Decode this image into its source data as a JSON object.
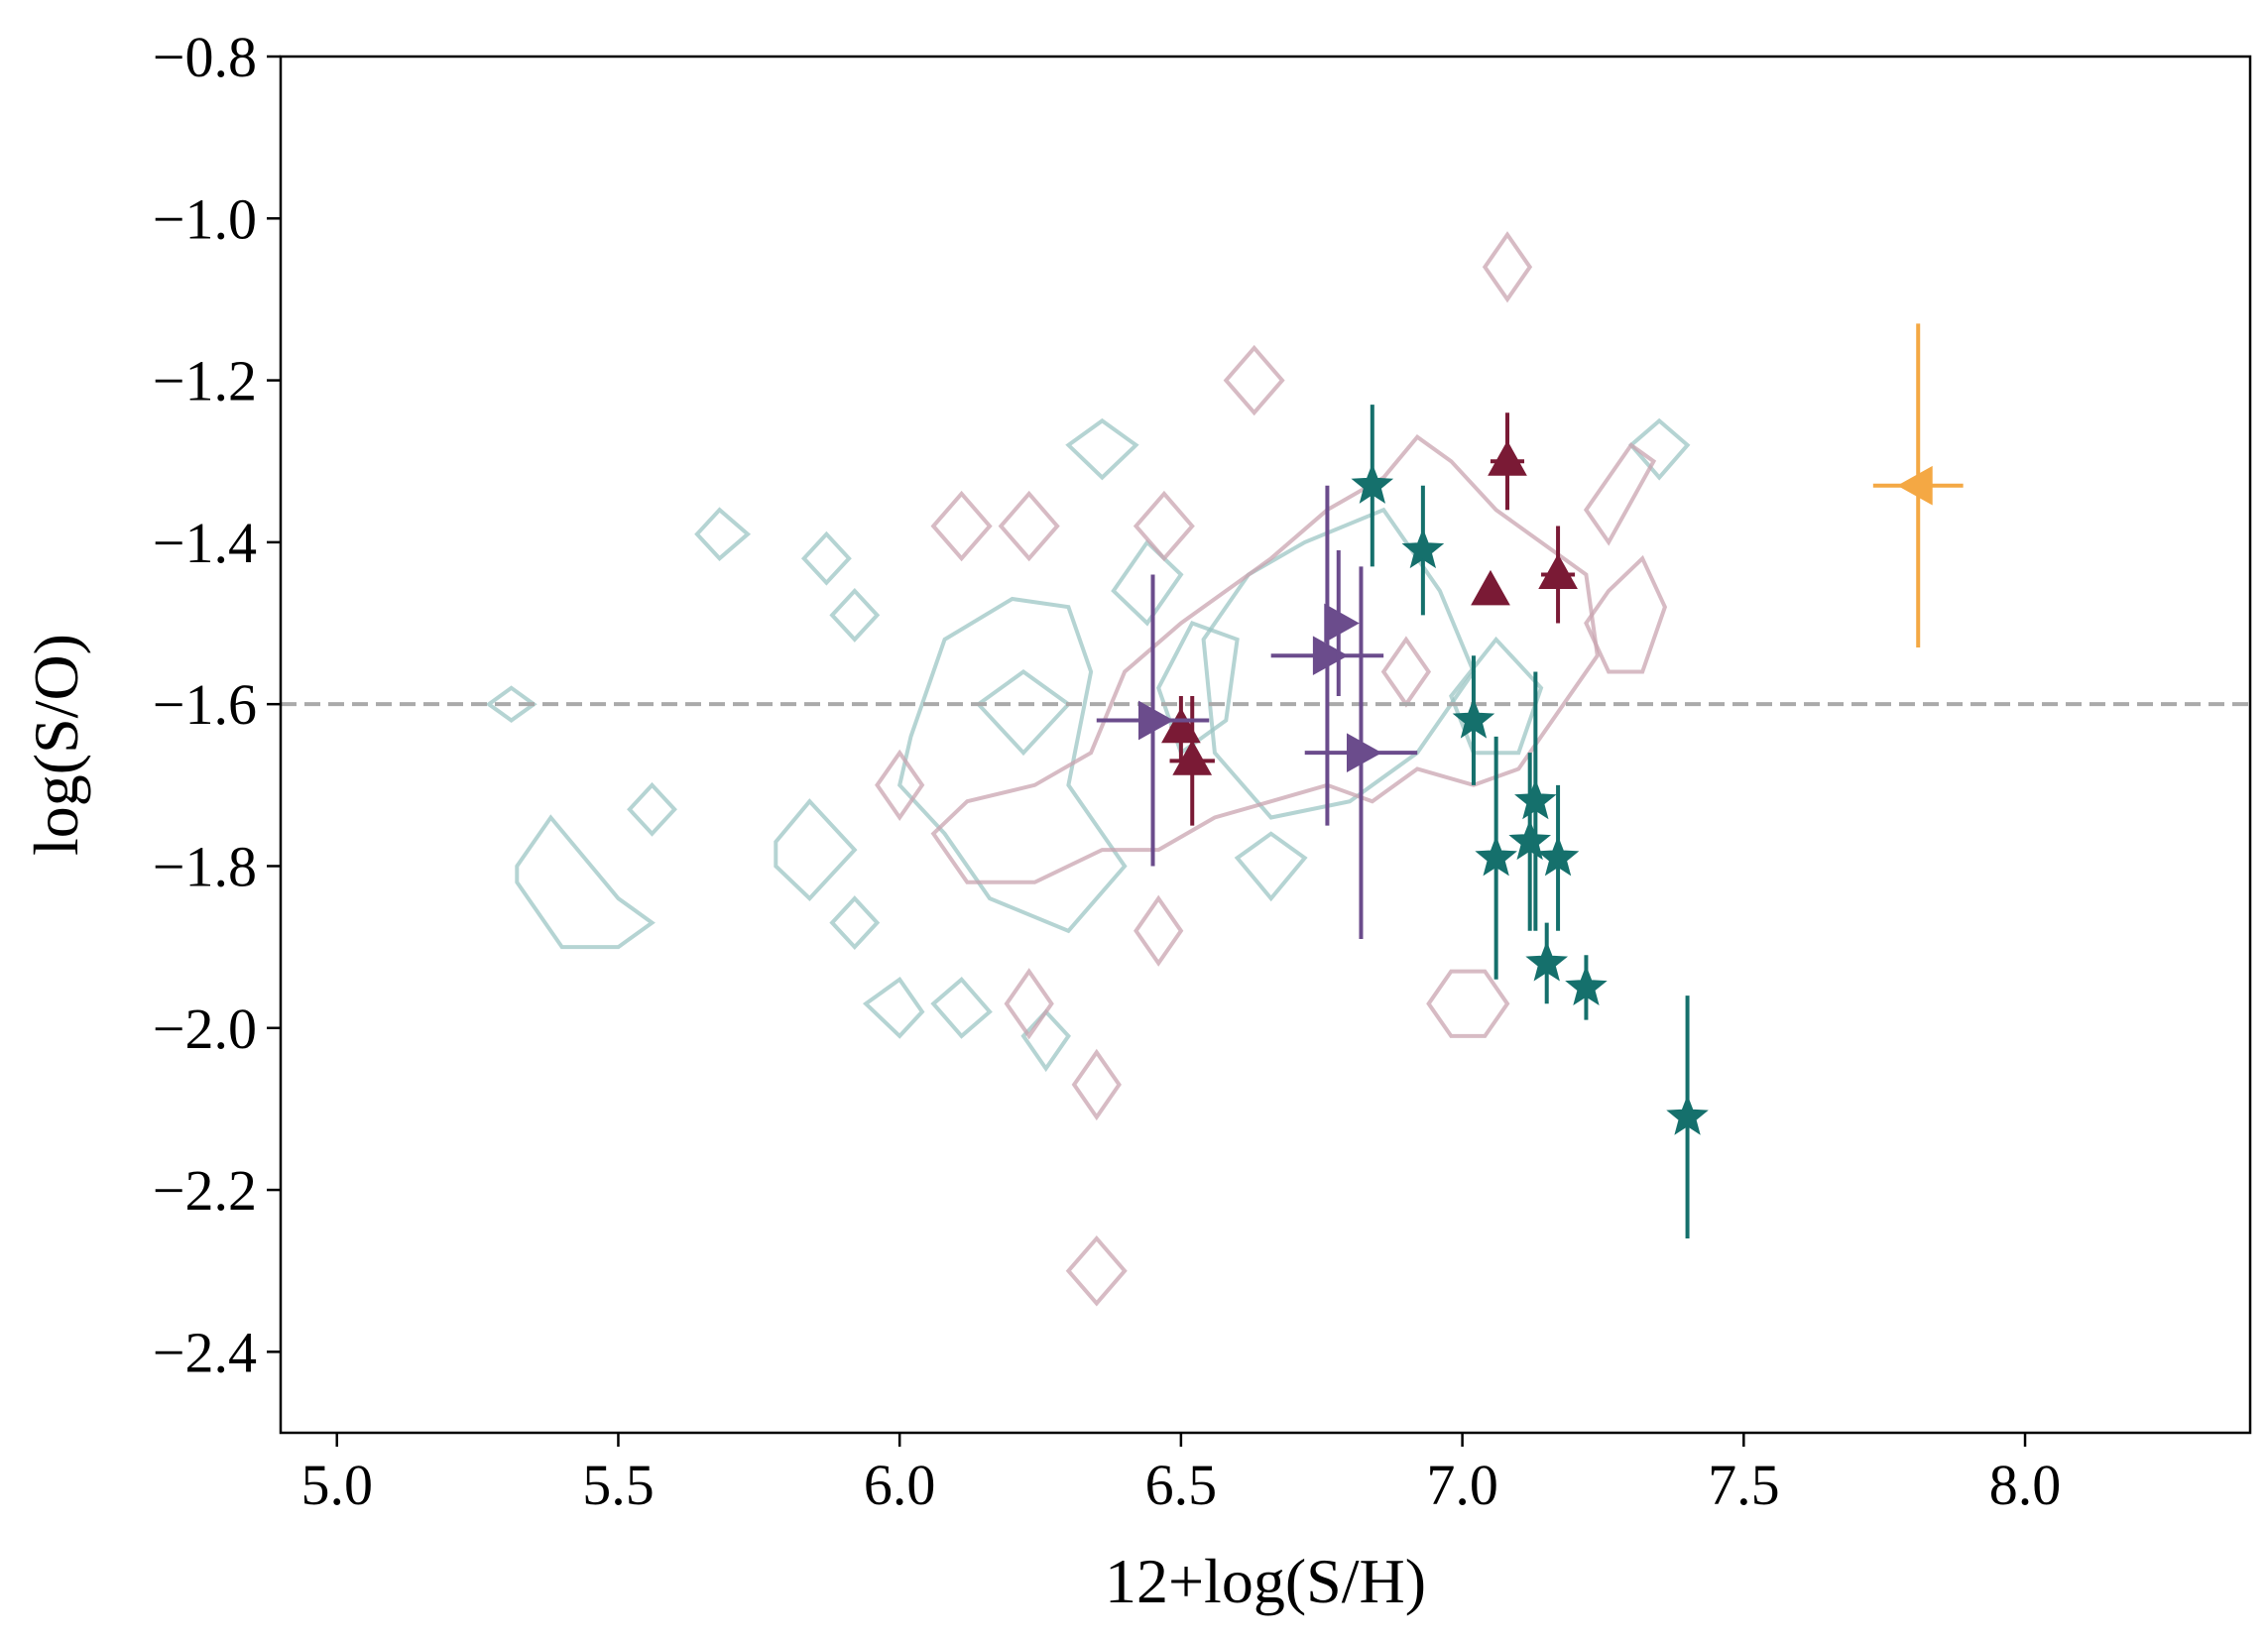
{
  "chart_data": {
    "type": "scatter",
    "title": "",
    "xlabel": "12+log(S/H)",
    "ylabel": "log(S/O)",
    "xlim": [
      4.9,
      8.4
    ],
    "ylim": [
      -2.5,
      -0.8
    ],
    "x_ticks": [
      5.0,
      5.5,
      6.0,
      6.5,
      7.0,
      7.5,
      8.0
    ],
    "x_tick_labels": [
      "5.0",
      "5.5",
      "6.0",
      "6.5",
      "7.0",
      "7.5",
      "8.0"
    ],
    "y_ticks": [
      -0.8,
      -1.0,
      -1.2,
      -1.4,
      -1.6,
      -1.8,
      -2.0,
      -2.2,
      -2.4
    ],
    "y_tick_labels": [
      "−0.8",
      "−1.0",
      "−1.2",
      "−1.4",
      "−1.6",
      "−1.8",
      "−2.0",
      "−2.2",
      "−2.4"
    ],
    "grid": false,
    "reference_line": {
      "y": -1.6,
      "style": "dashed",
      "color": "#aaaaaa"
    },
    "series": [
      {
        "name": "stars",
        "marker": "star",
        "color": "#15706c",
        "points": [
          {
            "x": 6.84,
            "y": -1.33,
            "yerr": [
              0.1,
              0.1
            ],
            "xerr": [
              0,
              0
            ]
          },
          {
            "x": 6.93,
            "y": -1.41,
            "yerr": [
              0.08,
              0.08
            ],
            "xerr": [
              0,
              0
            ]
          },
          {
            "x": 7.02,
            "y": -1.62,
            "yerr": [
              0.08,
              0.08
            ],
            "xerr": [
              0,
              0
            ]
          },
          {
            "x": 7.06,
            "y": -1.79,
            "yerr": [
              0.15,
              0.15
            ],
            "xerr": [
              0,
              0
            ]
          },
          {
            "x": 7.12,
            "y": -1.77,
            "yerr": [
              0.11,
              0.11
            ],
            "xerr": [
              0,
              0
            ]
          },
          {
            "x": 7.13,
            "y": -1.72,
            "yerr": [
              0.16,
              0.16
            ],
            "xerr": [
              0,
              0
            ]
          },
          {
            "x": 7.17,
            "y": -1.79,
            "yerr": [
              0.09,
              0.09
            ],
            "xerr": [
              0,
              0
            ]
          },
          {
            "x": 7.15,
            "y": -1.92,
            "yerr": [
              0.05,
              0.05
            ],
            "xerr": [
              0,
              0
            ]
          },
          {
            "x": 7.22,
            "y": -1.95,
            "yerr": [
              0.04,
              0.04
            ],
            "xerr": [
              0,
              0
            ]
          },
          {
            "x": 7.4,
            "y": -2.11,
            "yerr": [
              0.15,
              0.15
            ],
            "xerr": [
              0,
              0
            ]
          }
        ]
      },
      {
        "name": "triangles-up",
        "marker": "triangle-up",
        "color": "#7a1a35",
        "points": [
          {
            "x": 6.5,
            "y": -1.63,
            "yerr": [
              0.04,
              0.04
            ],
            "xerr": [
              0.02,
              0.02
            ]
          },
          {
            "x": 6.52,
            "y": -1.67,
            "yerr": [
              0.08,
              0.08
            ],
            "xerr": [
              0.04,
              0.04
            ]
          },
          {
            "x": 7.05,
            "y": -1.46,
            "yerr": [
              0.0,
              0.0
            ],
            "xerr": [
              0,
              0
            ]
          },
          {
            "x": 7.08,
            "y": -1.3,
            "yerr": [
              0.06,
              0.06
            ],
            "xerr": [
              0.03,
              0.03
            ]
          },
          {
            "x": 7.17,
            "y": -1.44,
            "yerr": [
              0.06,
              0.06
            ],
            "xerr": [
              0.03,
              0.03
            ]
          }
        ]
      },
      {
        "name": "triangles-right",
        "marker": "triangle-right",
        "color": "#6b4c8c",
        "points": [
          {
            "x": 6.45,
            "y": -1.62,
            "yerr": [
              0.18,
              0.18
            ],
            "xerr": [
              0.1,
              0.1
            ]
          },
          {
            "x": 6.76,
            "y": -1.54,
            "yerr": [
              0.21,
              0.21
            ],
            "xerr": [
              0.1,
              0.1
            ]
          },
          {
            "x": 6.78,
            "y": -1.5,
            "yerr": [
              0.09,
              0.09
            ],
            "xerr": [
              0,
              0
            ]
          },
          {
            "x": 6.82,
            "y": -1.66,
            "yerr": [
              0.23,
              0.23
            ],
            "xerr": [
              0.1,
              0.1
            ]
          }
        ]
      },
      {
        "name": "triangle-left",
        "marker": "triangle-left",
        "color": "#f4a844",
        "points": [
          {
            "x": 7.81,
            "y": -1.33,
            "yerr": [
              0.2,
              0.2
            ],
            "xerr": [
              0.08,
              0.08
            ]
          }
        ]
      }
    ],
    "contours": [
      {
        "name": "teal-density",
        "color": "#9cc6c4",
        "paths": [
          [
            [
              5.27,
              -1.6
            ],
            [
              5.31,
              -1.58
            ],
            [
              5.35,
              -1.6
            ],
            [
              5.31,
              -1.62
            ]
          ],
          [
            [
              5.64,
              -1.39
            ],
            [
              5.68,
              -1.36
            ],
            [
              5.73,
              -1.39
            ],
            [
              5.68,
              -1.42
            ]
          ],
          [
            [
              5.52,
              -1.73
            ],
            [
              5.56,
              -1.7
            ],
            [
              5.6,
              -1.73
            ],
            [
              5.56,
              -1.76
            ]
          ],
          [
            [
              5.32,
              -1.8
            ],
            [
              5.38,
              -1.74
            ],
            [
              5.5,
              -1.84
            ],
            [
              5.56,
              -1.87
            ],
            [
              5.5,
              -1.9
            ],
            [
              5.4,
              -1.9
            ],
            [
              5.32,
              -1.82
            ]
          ],
          [
            [
              5.83,
              -1.42
            ],
            [
              5.87,
              -1.39
            ],
            [
              5.91,
              -1.42
            ],
            [
              5.87,
              -1.45
            ]
          ],
          [
            [
              5.88,
              -1.49
            ],
            [
              5.92,
              -1.46
            ],
            [
              5.96,
              -1.49
            ],
            [
              5.92,
              -1.52
            ]
          ],
          [
            [
              5.78,
              -1.77
            ],
            [
              5.84,
              -1.72
            ],
            [
              5.92,
              -1.78
            ],
            [
              5.84,
              -1.84
            ],
            [
              5.78,
              -1.8
            ]
          ],
          [
            [
              5.88,
              -1.87
            ],
            [
              5.92,
              -1.84
            ],
            [
              5.96,
              -1.87
            ],
            [
              5.92,
              -1.9
            ]
          ],
          [
            [
              5.94,
              -1.97
            ],
            [
              6.0,
              -1.94
            ],
            [
              6.04,
              -1.98
            ],
            [
              6.0,
              -2.01
            ]
          ],
          [
            [
              6.06,
              -1.97
            ],
            [
              6.11,
              -1.94
            ],
            [
              6.16,
              -1.98
            ],
            [
              6.11,
              -2.01
            ]
          ],
          [
            [
              6.3,
              -1.28
            ],
            [
              6.36,
              -1.25
            ],
            [
              6.42,
              -1.28
            ],
            [
              6.36,
              -1.32
            ]
          ],
          [
            [
              6.02,
              -1.64
            ],
            [
              6.08,
              -1.52
            ],
            [
              6.2,
              -1.47
            ],
            [
              6.3,
              -1.48
            ],
            [
              6.34,
              -1.56
            ],
            [
              6.3,
              -1.7
            ],
            [
              6.4,
              -1.8
            ],
            [
              6.3,
              -1.88
            ],
            [
              6.16,
              -1.84
            ],
            [
              6.08,
              -1.76
            ],
            [
              6.0,
              -1.7
            ]
          ],
          [
            [
              6.14,
              -1.6
            ],
            [
              6.22,
              -1.56
            ],
            [
              6.3,
              -1.6
            ],
            [
              6.22,
              -1.66
            ]
          ],
          [
            [
              6.54,
              -1.52
            ],
            [
              6.62,
              -1.44
            ],
            [
              6.72,
              -1.4
            ],
            [
              6.86,
              -1.36
            ],
            [
              6.96,
              -1.46
            ],
            [
              7.02,
              -1.56
            ],
            [
              6.92,
              -1.66
            ],
            [
              6.8,
              -1.72
            ],
            [
              6.66,
              -1.74
            ],
            [
              6.56,
              -1.66
            ]
          ],
          [
            [
              6.46,
              -1.58
            ],
            [
              6.52,
              -1.5
            ],
            [
              6.6,
              -1.52
            ],
            [
              6.58,
              -1.62
            ],
            [
              6.5,
              -1.66
            ]
          ],
          [
            [
              6.6,
              -1.79
            ],
            [
              6.66,
              -1.76
            ],
            [
              6.72,
              -1.79
            ],
            [
              6.66,
              -1.84
            ]
          ],
          [
            [
              6.98,
              -1.59
            ],
            [
              7.06,
              -1.52
            ],
            [
              7.14,
              -1.58
            ],
            [
              7.1,
              -1.66
            ],
            [
              7.02,
              -1.66
            ]
          ],
          [
            [
              7.3,
              -1.28
            ],
            [
              7.35,
              -1.25
            ],
            [
              7.4,
              -1.28
            ],
            [
              7.35,
              -1.32
            ]
          ],
          [
            [
              6.22,
              -2.01
            ],
            [
              6.26,
              -1.98
            ],
            [
              6.3,
              -2.01
            ],
            [
              6.26,
              -2.05
            ]
          ],
          [
            [
              6.38,
              -1.46
            ],
            [
              6.44,
              -1.4
            ],
            [
              6.5,
              -1.44
            ],
            [
              6.44,
              -1.5
            ]
          ]
        ]
      },
      {
        "name": "mauve-density",
        "color": "#c9a4b0",
        "paths": [
          [
            [
              7.04,
              -1.06
            ],
            [
              7.08,
              -1.02
            ],
            [
              7.12,
              -1.06
            ],
            [
              7.08,
              -1.1
            ]
          ],
          [
            [
              6.58,
              -1.2
            ],
            [
              6.63,
              -1.16
            ],
            [
              6.68,
              -1.2
            ],
            [
              6.63,
              -1.24
            ]
          ],
          [
            [
              6.06,
              -1.38
            ],
            [
              6.11,
              -1.34
            ],
            [
              6.16,
              -1.38
            ],
            [
              6.11,
              -1.42
            ]
          ],
          [
            [
              6.18,
              -1.38
            ],
            [
              6.23,
              -1.34
            ],
            [
              6.28,
              -1.38
            ],
            [
              6.23,
              -1.42
            ]
          ],
          [
            [
              6.42,
              -1.38
            ],
            [
              6.47,
              -1.34
            ],
            [
              6.52,
              -1.38
            ],
            [
              6.47,
              -1.42
            ]
          ],
          [
            [
              5.96,
              -1.7
            ],
            [
              6.0,
              -1.66
            ],
            [
              6.04,
              -1.7
            ],
            [
              6.0,
              -1.74
            ]
          ],
          [
            [
              6.42,
              -1.88
            ],
            [
              6.46,
              -1.84
            ],
            [
              6.5,
              -1.88
            ],
            [
              6.46,
              -1.92
            ]
          ],
          [
            [
              6.19,
              -1.97
            ],
            [
              6.23,
              -1.93
            ],
            [
              6.27,
              -1.97
            ],
            [
              6.23,
              -2.01
            ]
          ],
          [
            [
              6.31,
              -2.07
            ],
            [
              6.35,
              -2.03
            ],
            [
              6.39,
              -2.07
            ],
            [
              6.35,
              -2.11
            ]
          ],
          [
            [
              6.3,
              -2.3
            ],
            [
              6.35,
              -2.26
            ],
            [
              6.4,
              -2.3
            ],
            [
              6.35,
              -2.34
            ]
          ],
          [
            [
              6.94,
              -1.97
            ],
            [
              6.98,
              -1.93
            ],
            [
              7.04,
              -1.93
            ],
            [
              7.08,
              -1.97
            ],
            [
              7.04,
              -2.01
            ],
            [
              6.98,
              -2.01
            ]
          ],
          [
            [
              6.06,
              -1.76
            ],
            [
              6.12,
              -1.72
            ],
            [
              6.24,
              -1.7
            ],
            [
              6.34,
              -1.66
            ],
            [
              6.4,
              -1.56
            ],
            [
              6.5,
              -1.5
            ],
            [
              6.58,
              -1.46
            ],
            [
              6.66,
              -1.42
            ],
            [
              6.76,
              -1.36
            ],
            [
              6.86,
              -1.32
            ],
            [
              6.92,
              -1.27
            ],
            [
              6.98,
              -1.3
            ],
            [
              7.06,
              -1.36
            ],
            [
              7.14,
              -1.4
            ],
            [
              7.22,
              -1.44
            ],
            [
              7.24,
              -1.54
            ],
            [
              7.18,
              -1.6
            ],
            [
              7.1,
              -1.68
            ],
            [
              7.02,
              -1.7
            ],
            [
              6.92,
              -1.68
            ],
            [
              6.84,
              -1.72
            ],
            [
              6.76,
              -1.7
            ],
            [
              6.66,
              -1.72
            ],
            [
              6.56,
              -1.74
            ],
            [
              6.46,
              -1.78
            ],
            [
              6.36,
              -1.78
            ],
            [
              6.24,
              -1.82
            ],
            [
              6.12,
              -1.82
            ]
          ],
          [
            [
              7.26,
              -1.46
            ],
            [
              7.32,
              -1.42
            ],
            [
              7.36,
              -1.48
            ],
            [
              7.32,
              -1.56
            ],
            [
              7.26,
              -1.56
            ],
            [
              7.22,
              -1.5
            ]
          ],
          [
            [
              7.22,
              -1.36
            ],
            [
              7.3,
              -1.28
            ],
            [
              7.34,
              -1.3
            ],
            [
              7.26,
              -1.4
            ]
          ],
          [
            [
              6.86,
              -1.56
            ],
            [
              6.9,
              -1.52
            ],
            [
              6.94,
              -1.56
            ],
            [
              6.9,
              -1.6
            ]
          ]
        ]
      }
    ]
  }
}
